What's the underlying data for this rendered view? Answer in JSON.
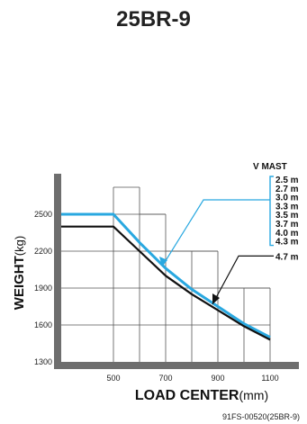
{
  "chart_data": {
    "type": "line",
    "title": "25BR-9",
    "xlabel": "LOAD CENTER",
    "xlabel_unit": "(mm)",
    "ylabel": "WEIGHT",
    "ylabel_unit": "(kg)",
    "x_ticks": [
      "500",
      "700",
      "900",
      "1100"
    ],
    "y_ticks": [
      "1300",
      "1600",
      "1900",
      "2200",
      "2500"
    ],
    "xlim": [
      300,
      1100
    ],
    "ylim": [
      1300,
      2500
    ],
    "grid": "stepped",
    "legend": {
      "title": "V MAST",
      "groups": [
        {
          "items": [
            "2.5 m",
            "2.7 m",
            "3.0 m",
            "3.3 m",
            "3.5 m",
            "3.7 m",
            "4.0 m",
            "4.3 m"
          ],
          "color": "#29a8e0"
        },
        {
          "items": [
            "4.7 m"
          ],
          "color": "#111111"
        }
      ]
    },
    "series": [
      {
        "color": "#29a8e0",
        "x": [
          300,
          500,
          600,
          700,
          800,
          900,
          1000,
          1100
        ],
        "y": [
          2500,
          2500,
          2270,
          2060,
          1890,
          1750,
          1610,
          1500
        ]
      },
      {
        "color": "#111111",
        "x": [
          300,
          500,
          600,
          700,
          800,
          900,
          1000,
          1100
        ],
        "y": [
          2400,
          2400,
          2200,
          2000,
          1850,
          1720,
          1590,
          1480
        ]
      }
    ],
    "code_label": "91FS-00520(25BR-9)"
  },
  "colors": {
    "axis": "#6e6e6e",
    "grid": "#555555"
  }
}
